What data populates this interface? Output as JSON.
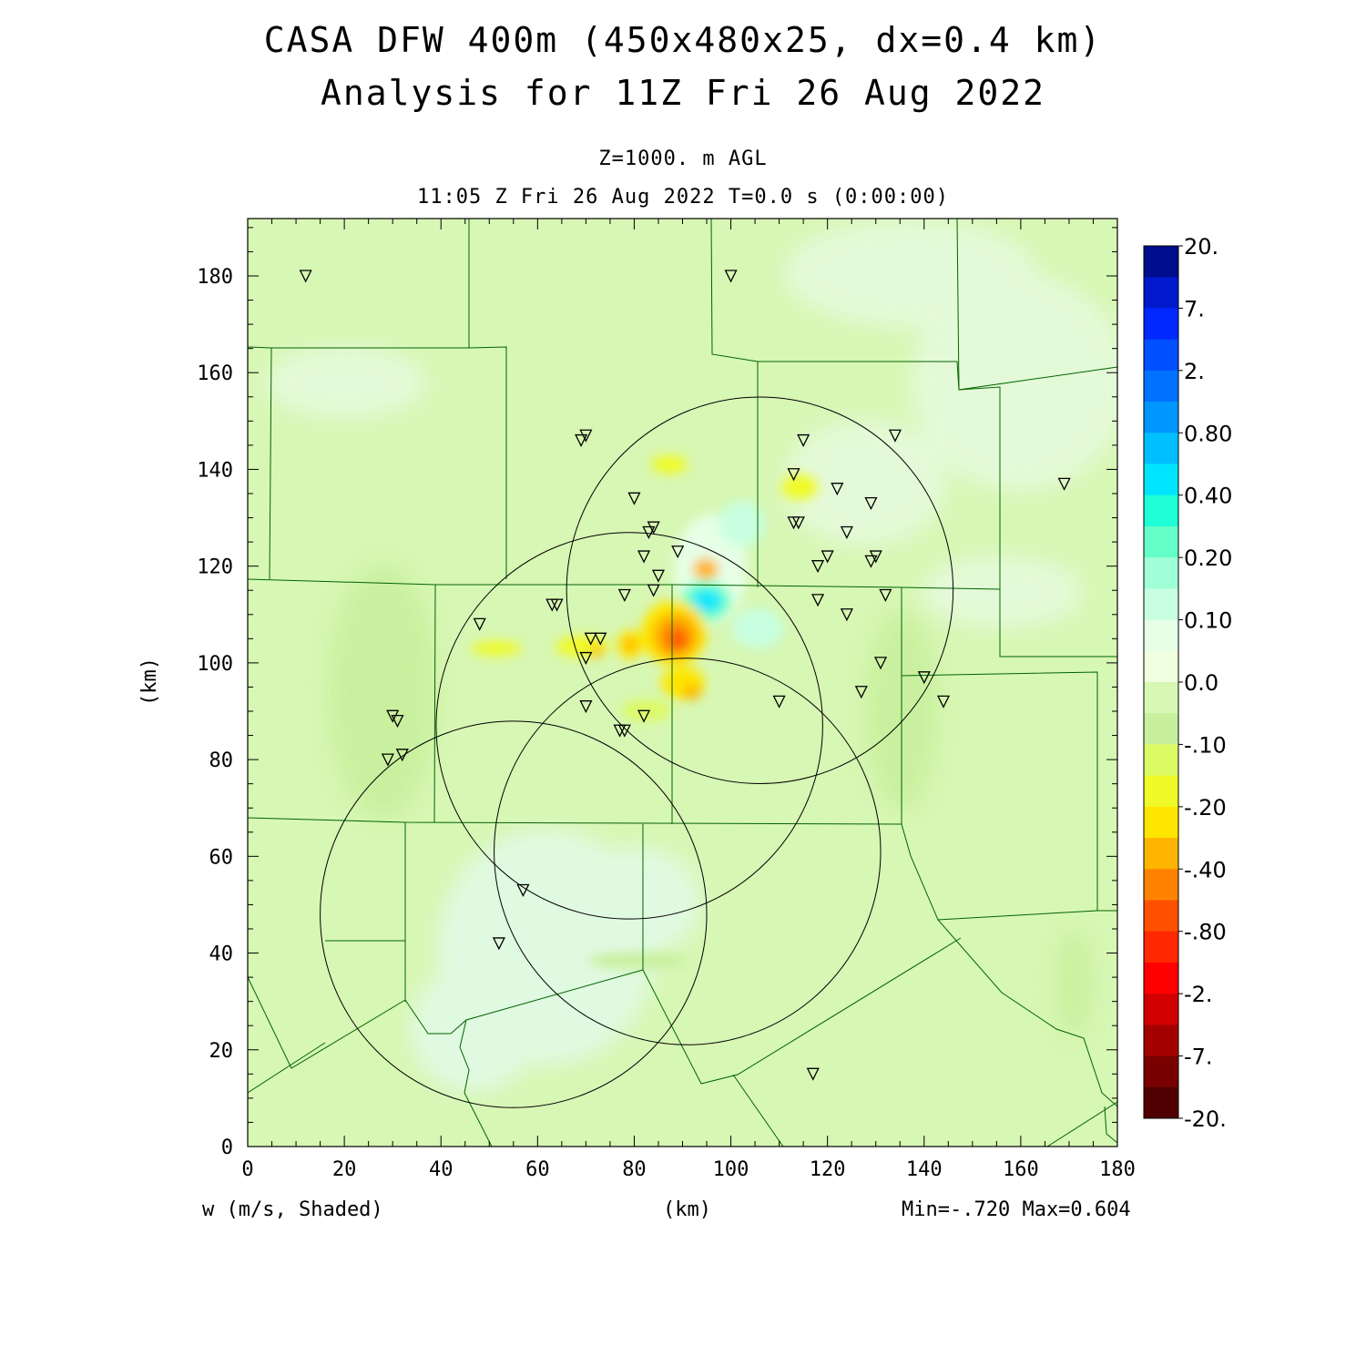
{
  "title_line1": "CASA DFW 400m (450x480x25, dx=0.4 km)",
  "title_line2": "Analysis for 11Z Fri 26 Aug 2022",
  "subtitle_line1": "Z=1000. m AGL",
  "subtitle_line2": "11:05 Z Fri 26 Aug 2022   T=0.0 s (0:00:00)",
  "variable_label": "w (m/s, Shaded)",
  "x_axis_label": "(km)",
  "y_axis_label": "(km)",
  "min_max": "Min=-.720 Max=0.604",
  "x_ticks": [
    "0",
    "20",
    "40",
    "60",
    "80",
    "100",
    "120",
    "140",
    "160",
    "180"
  ],
  "y_ticks": [
    "0",
    "20",
    "40",
    "60",
    "80",
    "100",
    "120",
    "140",
    "160",
    "180"
  ],
  "colorbar": {
    "colors": [
      "#000d8c",
      "#0019cc",
      "#0028ff",
      "#0050ff",
      "#0072ff",
      "#0096ff",
      "#00bfff",
      "#00e5ff",
      "#1effd6",
      "#64ffc8",
      "#a0ffd6",
      "#c8ffe1",
      "#e6ffe6",
      "#f0ffe0",
      "#d7f7b4",
      "#c8f09c",
      "#dcfa64",
      "#f0fa28",
      "#ffe600",
      "#ffb400",
      "#ff8200",
      "#ff5000",
      "#ff2800",
      "#ff0000",
      "#d20000",
      "#a50000",
      "#780000",
      "#500000"
    ],
    "labels": [
      "20.",
      "7.",
      "2.",
      "0.80",
      "0.40",
      "0.20",
      "0.10",
      "0.0",
      "-.10",
      "-.20",
      "-.40",
      "-.80",
      "-2.",
      "-7.",
      "-20."
    ]
  },
  "radar_markers": [
    [
      12,
      180
    ],
    [
      100,
      180
    ],
    [
      70,
      147
    ],
    [
      69,
      146
    ],
    [
      115,
      146
    ],
    [
      134,
      147
    ],
    [
      113,
      139
    ],
    [
      122,
      136
    ],
    [
      129,
      133
    ],
    [
      169,
      137
    ],
    [
      80,
      134
    ],
    [
      84,
      128
    ],
    [
      83,
      127
    ],
    [
      89,
      123
    ],
    [
      82,
      122
    ],
    [
      114,
      129
    ],
    [
      113,
      129
    ],
    [
      124,
      127
    ],
    [
      120,
      122
    ],
    [
      130,
      122
    ],
    [
      129,
      121
    ],
    [
      118,
      120
    ],
    [
      85,
      118
    ],
    [
      84,
      115
    ],
    [
      78,
      114
    ],
    [
      63,
      112
    ],
    [
      64,
      112
    ],
    [
      118,
      113
    ],
    [
      132,
      114
    ],
    [
      124,
      110
    ],
    [
      48,
      108
    ],
    [
      71,
      105
    ],
    [
      73,
      105
    ],
    [
      70,
      101
    ],
    [
      131,
      100
    ],
    [
      140,
      97
    ],
    [
      144,
      92
    ],
    [
      127,
      94
    ],
    [
      110,
      92
    ],
    [
      70,
      91
    ],
    [
      30,
      89
    ],
    [
      31,
      88
    ],
    [
      82,
      89
    ],
    [
      77,
      86
    ],
    [
      78,
      86
    ],
    [
      32,
      81
    ],
    [
      29,
      80
    ],
    [
      57,
      53
    ],
    [
      52,
      42
    ],
    [
      117,
      15
    ]
  ],
  "range_rings": [
    {
      "cx": 106,
      "cy": 115,
      "r": 40
    },
    {
      "cx": 79,
      "cy": 87,
      "r": 40
    },
    {
      "cx": 91,
      "cy": 61,
      "r": 40
    },
    {
      "cx": 55,
      "cy": 48,
      "r": 40
    }
  ]
}
